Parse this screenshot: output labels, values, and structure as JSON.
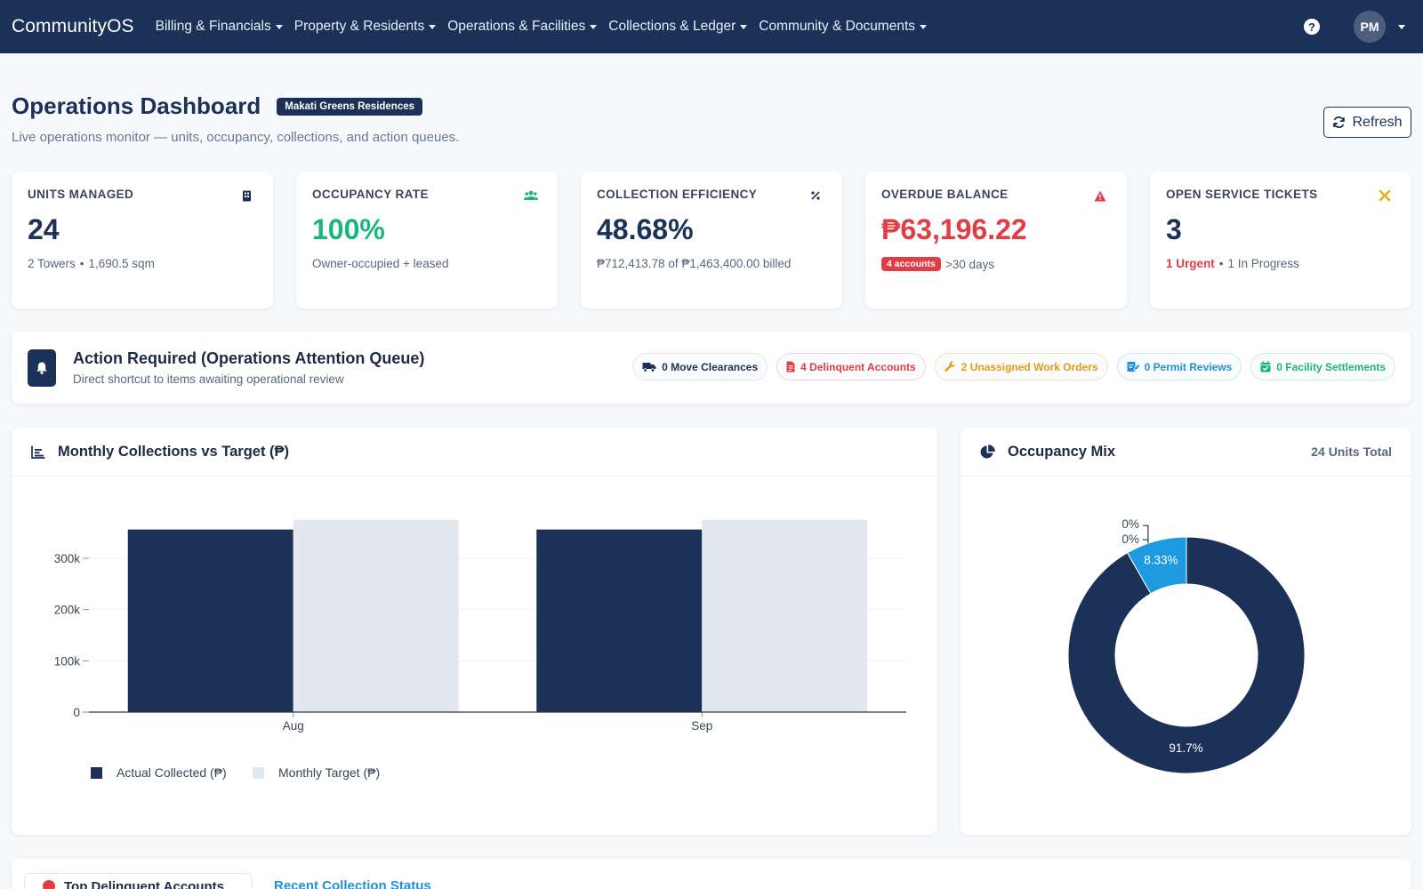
{
  "navbar": {
    "brand": "CommunityOS",
    "menus": [
      "Billing & Financials",
      "Property & Residents",
      "Operations & Facilities",
      "Collections & Ledger",
      "Community & Documents"
    ],
    "avatar_initials": "PM"
  },
  "header": {
    "title": "Operations Dashboard",
    "badge": "Makati Greens Residences",
    "subtitle": "Live operations monitor — units, occupancy, collections, and action queues.",
    "refresh_label": "Refresh"
  },
  "kpis": {
    "units": {
      "label": "UNITS MANAGED",
      "value": "24",
      "towers": "2 Towers",
      "area": "1,690.5 sqm",
      "icon": "building-icon"
    },
    "occupancy": {
      "label": "OCCUPANCY RATE",
      "value": "100%",
      "sub": "Owner-occupied + leased",
      "icon": "users-icon",
      "color": "#1db57f"
    },
    "collection": {
      "label": "COLLECTION EFFICIENCY",
      "value": "48.68%",
      "sub": "₱712,413.78 of ₱1,463,400.00 billed",
      "icon": "percent-icon"
    },
    "overdue": {
      "label": "OVERDUE BALANCE",
      "value": "₱63,196.22",
      "pill": "4 accounts",
      "sub": ">30 days",
      "icon": "warning-icon",
      "color": "#e23d45"
    },
    "tickets": {
      "label": "OPEN SERVICE TICKETS",
      "value": "3",
      "urgent": "1 Urgent",
      "progress": "1 In Progress",
      "icon": "tools-icon"
    }
  },
  "action": {
    "title": "Action Required (Operations Attention Queue)",
    "subtitle": "Direct shortcut to items awaiting operational review",
    "pills": {
      "move": "0 Move Clearances",
      "delinquent": "4 Delinquent Accounts",
      "workorders": "2 Unassigned Work Orders",
      "permits": "0 Permit Reviews",
      "settlements": "0 Facility Settlements"
    }
  },
  "bar_card": {
    "title": "Monthly Collections vs Target (₱)"
  },
  "pie_card": {
    "title": "Occupancy Mix",
    "meta": "24 Units Total"
  },
  "chart_data": [
    {
      "type": "bar",
      "title": "Monthly Collections vs Target (₱)",
      "categories": [
        "Aug",
        "Sep"
      ],
      "series": [
        {
          "name": "Actual Collected (₱)",
          "values": [
            356000,
            356000
          ],
          "color": "#1b3157"
        },
        {
          "name": "Monthly Target (₱)",
          "values": [
            375000,
            375000
          ],
          "color": "#e3e8f0"
        }
      ],
      "yticks": [
        0,
        100000,
        200000,
        300000
      ],
      "ytick_labels": [
        "0",
        "100k",
        "200k",
        "300k"
      ],
      "ylim": [
        0,
        390000
      ],
      "legend": "bottom-left",
      "grid": true
    },
    {
      "type": "pie",
      "title": "Occupancy Mix",
      "slices": [
        {
          "label": "8.33%",
          "value": 8.33,
          "color": "#1e9be0"
        },
        {
          "label": "91.7%",
          "value": 91.67,
          "color": "#1b3157"
        },
        {
          "label": "0%",
          "value": 0,
          "color": "#1b3157"
        },
        {
          "label": "0%",
          "value": 0,
          "color": "#1b3157"
        }
      ]
    }
  ],
  "bottom": {
    "tab1": "Top Delinquent Accounts",
    "tab2": "Recent Collection Status"
  }
}
